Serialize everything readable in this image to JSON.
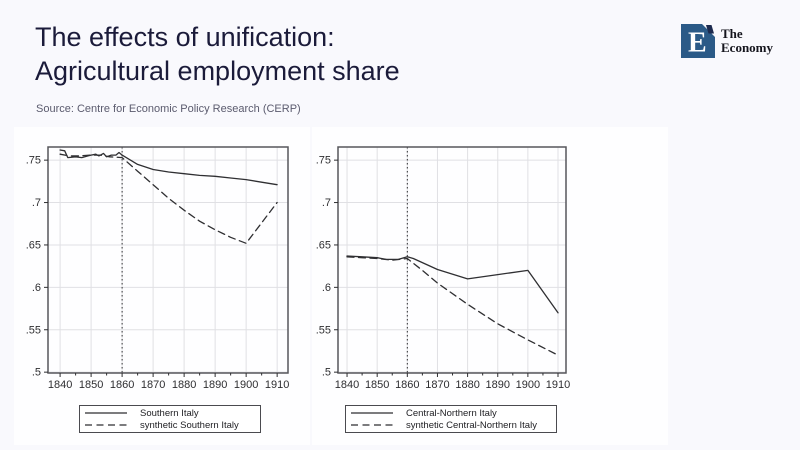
{
  "slide": {
    "title_line1": "The effects of unification:",
    "title_line2": "Agricultural employment share",
    "source": "Source: Centre for Economic Policy Research (CERP)",
    "background_color": "#f9f9fd",
    "title_color": "#1b1b3a"
  },
  "logo": {
    "letter": "E",
    "text_line1": "The",
    "text_line2": "Economy",
    "square_color": "#2b5a87",
    "tick_color": "#1d2b4f"
  },
  "chart_style": {
    "line_color": "#2f2f32",
    "grid_color": "#e0e0e4",
    "border_color": "#57575c",
    "tick_text_color": "#2e2e31",
    "reference_line_color": "#2f2f32"
  },
  "chart_data": [
    {
      "type": "line",
      "title": "",
      "xlabel": "",
      "ylabel": "",
      "xticks": [
        1840,
        1850,
        1860,
        1870,
        1880,
        1890,
        1900,
        1910
      ],
      "xminor_ticks": [
        1845,
        1855,
        1865,
        1875,
        1885,
        1895,
        1905
      ],
      "yticks": [
        0.5,
        0.55,
        0.6,
        0.65,
        0.7,
        0.75
      ],
      "ytick_labels": [
        ".5",
        ".55",
        ".6",
        ".65",
        ".7",
        ".75"
      ],
      "xlim": [
        1836.1,
        1913.5
      ],
      "ylim": [
        0.499,
        0.7655
      ],
      "grid": true,
      "vline": 1860,
      "legend_position": "below",
      "series": [
        {
          "name": "Southern Italy",
          "style": "solid",
          "points": [
            [
              1840,
              0.762
            ],
            [
              1841.5,
              0.761
            ],
            [
              1842.5,
              0.753
            ],
            [
              1845,
              0.754
            ],
            [
              1847,
              0.753
            ],
            [
              1849,
              0.755
            ],
            [
              1850,
              0.756
            ],
            [
              1851.5,
              0.757
            ],
            [
              1852.5,
              0.755
            ],
            [
              1854,
              0.758
            ],
            [
              1855,
              0.754
            ],
            [
              1856.5,
              0.756
            ],
            [
              1858,
              0.756
            ],
            [
              1859,
              0.759
            ],
            [
              1860,
              0.756
            ],
            [
              1865,
              0.745
            ],
            [
              1870,
              0.739
            ],
            [
              1875,
              0.736
            ],
            [
              1880,
              0.734
            ],
            [
              1885,
              0.732
            ],
            [
              1890,
              0.731
            ],
            [
              1895,
              0.729
            ],
            [
              1900,
              0.727
            ],
            [
              1905,
              0.724
            ],
            [
              1910,
              0.721
            ]
          ]
        },
        {
          "name": "synthetic Southern Italy",
          "style": "dashed",
          "points": [
            [
              1840,
              0.757
            ],
            [
              1843,
              0.755
            ],
            [
              1846,
              0.755
            ],
            [
              1850,
              0.756
            ],
            [
              1853,
              0.756
            ],
            [
              1856,
              0.754
            ],
            [
              1860,
              0.753
            ],
            [
              1865,
              0.737
            ],
            [
              1870,
              0.721
            ],
            [
              1875,
              0.705
            ],
            [
              1880,
              0.691
            ],
            [
              1885,
              0.678
            ],
            [
              1890,
              0.668
            ],
            [
              1895,
              0.659
            ],
            [
              1900,
              0.652
            ],
            [
              1910,
              0.7
            ]
          ]
        }
      ]
    },
    {
      "type": "line",
      "title": "",
      "xlabel": "",
      "ylabel": "",
      "xticks": [
        1840,
        1850,
        1860,
        1870,
        1880,
        1890,
        1900,
        1910
      ],
      "xminor_ticks": [
        1845,
        1855,
        1865,
        1875,
        1885,
        1895,
        1905
      ],
      "yticks": [
        0.5,
        0.55,
        0.6,
        0.65,
        0.7,
        0.75
      ],
      "ytick_labels": [
        ".5",
        ".55",
        ".6",
        ".65",
        ".7",
        ".75"
      ],
      "xlim": [
        1837.0,
        1912.65
      ],
      "ylim": [
        0.499,
        0.7655
      ],
      "grid": true,
      "vline": 1860,
      "legend_position": "below",
      "series": [
        {
          "name": "Central-Northern Italy",
          "style": "solid",
          "points": [
            [
              1840,
              0.637
            ],
            [
              1845,
              0.636
            ],
            [
              1850,
              0.635
            ],
            [
              1853,
              0.633
            ],
            [
              1857,
              0.633
            ],
            [
              1860,
              0.636
            ],
            [
              1862,
              0.634
            ],
            [
              1870,
              0.621
            ],
            [
              1880,
              0.61
            ],
            [
              1890,
              0.615
            ],
            [
              1900,
              0.62
            ],
            [
              1910,
              0.57
            ]
          ]
        },
        {
          "name": "synthetic Central-Northern Italy",
          "style": "dashed",
          "points": [
            [
              1840,
              0.636
            ],
            [
              1845,
              0.635
            ],
            [
              1850,
              0.634
            ],
            [
              1855,
              0.632
            ],
            [
              1860,
              0.634
            ],
            [
              1865,
              0.62
            ],
            [
              1870,
              0.605
            ],
            [
              1880,
              0.58
            ],
            [
              1890,
              0.557
            ],
            [
              1900,
              0.538
            ],
            [
              1910,
              0.52
            ]
          ]
        }
      ]
    }
  ]
}
